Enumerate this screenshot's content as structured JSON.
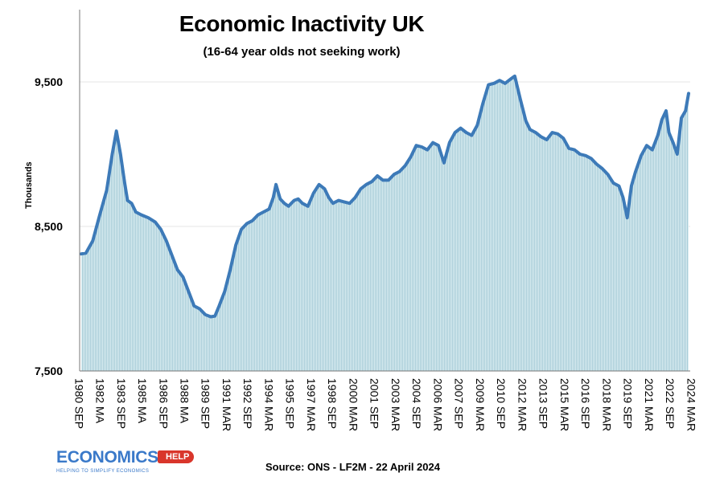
{
  "chart_data": {
    "type": "area",
    "title": "Economic Inactivity UK",
    "subtitle": "(16-64 year olds not seeking work)",
    "ylabel": "Thousands",
    "ylim": [
      7500,
      9900
    ],
    "yticks": [
      7500,
      8500,
      9500
    ],
    "ytick_labels": [
      "7,500",
      "8,500",
      "9,500"
    ],
    "xtick_labels": [
      "1980 SEP",
      "1982 MA",
      "1983 SEP",
      "1985 MA",
      "1986 SEP",
      "1988 MA",
      "1989 SEP",
      "1991 MAR",
      "1992 SEP",
      "1994 MAR",
      "1995 SEP",
      "1997 MAR",
      "1998 SEP",
      "2000 MAR",
      "2001 SEP",
      "2003 MAR",
      "2004 SEP",
      "2006 MAR",
      "2007 SEP",
      "2009 MAR",
      "2010 SEP",
      "2012 MAR",
      "2013 SEP",
      "2015 MAR",
      "2016 SEP",
      "2018 MAR",
      "2019 SEP",
      "2021 MAR",
      "2022 SEP",
      "2024 MAR"
    ],
    "grid": true,
    "source": "Source: ONS - LF2M - 22 April 2024",
    "series": [
      {
        "values_by_year": [
          [
            1980.67,
            8310
          ],
          [
            1981.0,
            8315
          ],
          [
            1981.5,
            8400
          ],
          [
            1982.0,
            8580
          ],
          [
            1982.5,
            8750
          ],
          [
            1982.9,
            9000
          ],
          [
            1983.2,
            9160
          ],
          [
            1983.5,
            9000
          ],
          [
            1983.8,
            8800
          ],
          [
            1984.0,
            8680
          ],
          [
            1984.3,
            8660
          ],
          [
            1984.6,
            8600
          ],
          [
            1985.0,
            8580
          ],
          [
            1985.5,
            8560
          ],
          [
            1986.0,
            8530
          ],
          [
            1986.4,
            8480
          ],
          [
            1986.8,
            8400
          ],
          [
            1987.2,
            8300
          ],
          [
            1987.6,
            8200
          ],
          [
            1988.0,
            8150
          ],
          [
            1988.4,
            8050
          ],
          [
            1988.8,
            7950
          ],
          [
            1989.2,
            7930
          ],
          [
            1989.6,
            7890
          ],
          [
            1990.0,
            7875
          ],
          [
            1990.3,
            7880
          ],
          [
            1990.6,
            7950
          ],
          [
            1991.0,
            8050
          ],
          [
            1991.4,
            8200
          ],
          [
            1991.8,
            8370
          ],
          [
            1992.2,
            8480
          ],
          [
            1992.6,
            8520
          ],
          [
            1993.0,
            8540
          ],
          [
            1993.4,
            8580
          ],
          [
            1993.8,
            8600
          ],
          [
            1994.2,
            8620
          ],
          [
            1994.5,
            8700
          ],
          [
            1994.7,
            8790
          ],
          [
            1995.0,
            8690
          ],
          [
            1995.3,
            8660
          ],
          [
            1995.6,
            8640
          ],
          [
            1996.0,
            8680
          ],
          [
            1996.3,
            8690
          ],
          [
            1996.6,
            8660
          ],
          [
            1997.0,
            8640
          ],
          [
            1997.4,
            8730
          ],
          [
            1997.8,
            8790
          ],
          [
            1998.2,
            8760
          ],
          [
            1998.5,
            8700
          ],
          [
            1998.8,
            8660
          ],
          [
            1999.2,
            8680
          ],
          [
            1999.6,
            8670
          ],
          [
            2000.0,
            8660
          ],
          [
            2000.4,
            8700
          ],
          [
            2000.8,
            8760
          ],
          [
            2001.2,
            8790
          ],
          [
            2001.6,
            8810
          ],
          [
            2002.0,
            8850
          ],
          [
            2002.4,
            8820
          ],
          [
            2002.8,
            8820
          ],
          [
            2003.2,
            8860
          ],
          [
            2003.6,
            8880
          ],
          [
            2004.0,
            8920
          ],
          [
            2004.4,
            8980
          ],
          [
            2004.8,
            9060
          ],
          [
            2005.2,
            9050
          ],
          [
            2005.6,
            9030
          ],
          [
            2006.0,
            9080
          ],
          [
            2006.4,
            9060
          ],
          [
            2006.8,
            8940
          ],
          [
            2007.2,
            9080
          ],
          [
            2007.6,
            9150
          ],
          [
            2008.0,
            9180
          ],
          [
            2008.4,
            9150
          ],
          [
            2008.8,
            9130
          ],
          [
            2009.2,
            9200
          ],
          [
            2009.6,
            9350
          ],
          [
            2010.0,
            9480
          ],
          [
            2010.4,
            9490
          ],
          [
            2010.8,
            9510
          ],
          [
            2011.2,
            9490
          ],
          [
            2011.6,
            9520
          ],
          [
            2011.9,
            9540
          ],
          [
            2012.3,
            9380
          ],
          [
            2012.7,
            9230
          ],
          [
            2013.0,
            9170
          ],
          [
            2013.4,
            9150
          ],
          [
            2013.8,
            9120
          ],
          [
            2014.2,
            9100
          ],
          [
            2014.6,
            9150
          ],
          [
            2015.0,
            9140
          ],
          [
            2015.4,
            9110
          ],
          [
            2015.8,
            9040
          ],
          [
            2016.2,
            9030
          ],
          [
            2016.6,
            9000
          ],
          [
            2017.0,
            8990
          ],
          [
            2017.4,
            8970
          ],
          [
            2017.8,
            8930
          ],
          [
            2018.2,
            8900
          ],
          [
            2018.6,
            8860
          ],
          [
            2019.0,
            8800
          ],
          [
            2019.4,
            8780
          ],
          [
            2019.7,
            8700
          ],
          [
            2020.0,
            8560
          ],
          [
            2020.3,
            8780
          ],
          [
            2020.6,
            8880
          ],
          [
            2021.0,
            8990
          ],
          [
            2021.4,
            9060
          ],
          [
            2021.8,
            9030
          ],
          [
            2022.2,
            9130
          ],
          [
            2022.5,
            9240
          ],
          [
            2022.8,
            9300
          ],
          [
            2023.0,
            9150
          ],
          [
            2023.3,
            9080
          ],
          [
            2023.6,
            9000
          ],
          [
            2023.9,
            9250
          ],
          [
            2024.2,
            9300
          ],
          [
            2024.42,
            9420
          ]
        ]
      }
    ]
  },
  "branding": {
    "logo_main": "ECONOMICS",
    "logo_help": "HELP",
    "logo_tagline": "HELPING TO SIMPLIFY ECONOMICS"
  },
  "colors": {
    "line": "#3d7ab8",
    "fill": "#cce3ea",
    "fill_stripe": "#a9cdd8",
    "grid": "#e6e6e6"
  }
}
